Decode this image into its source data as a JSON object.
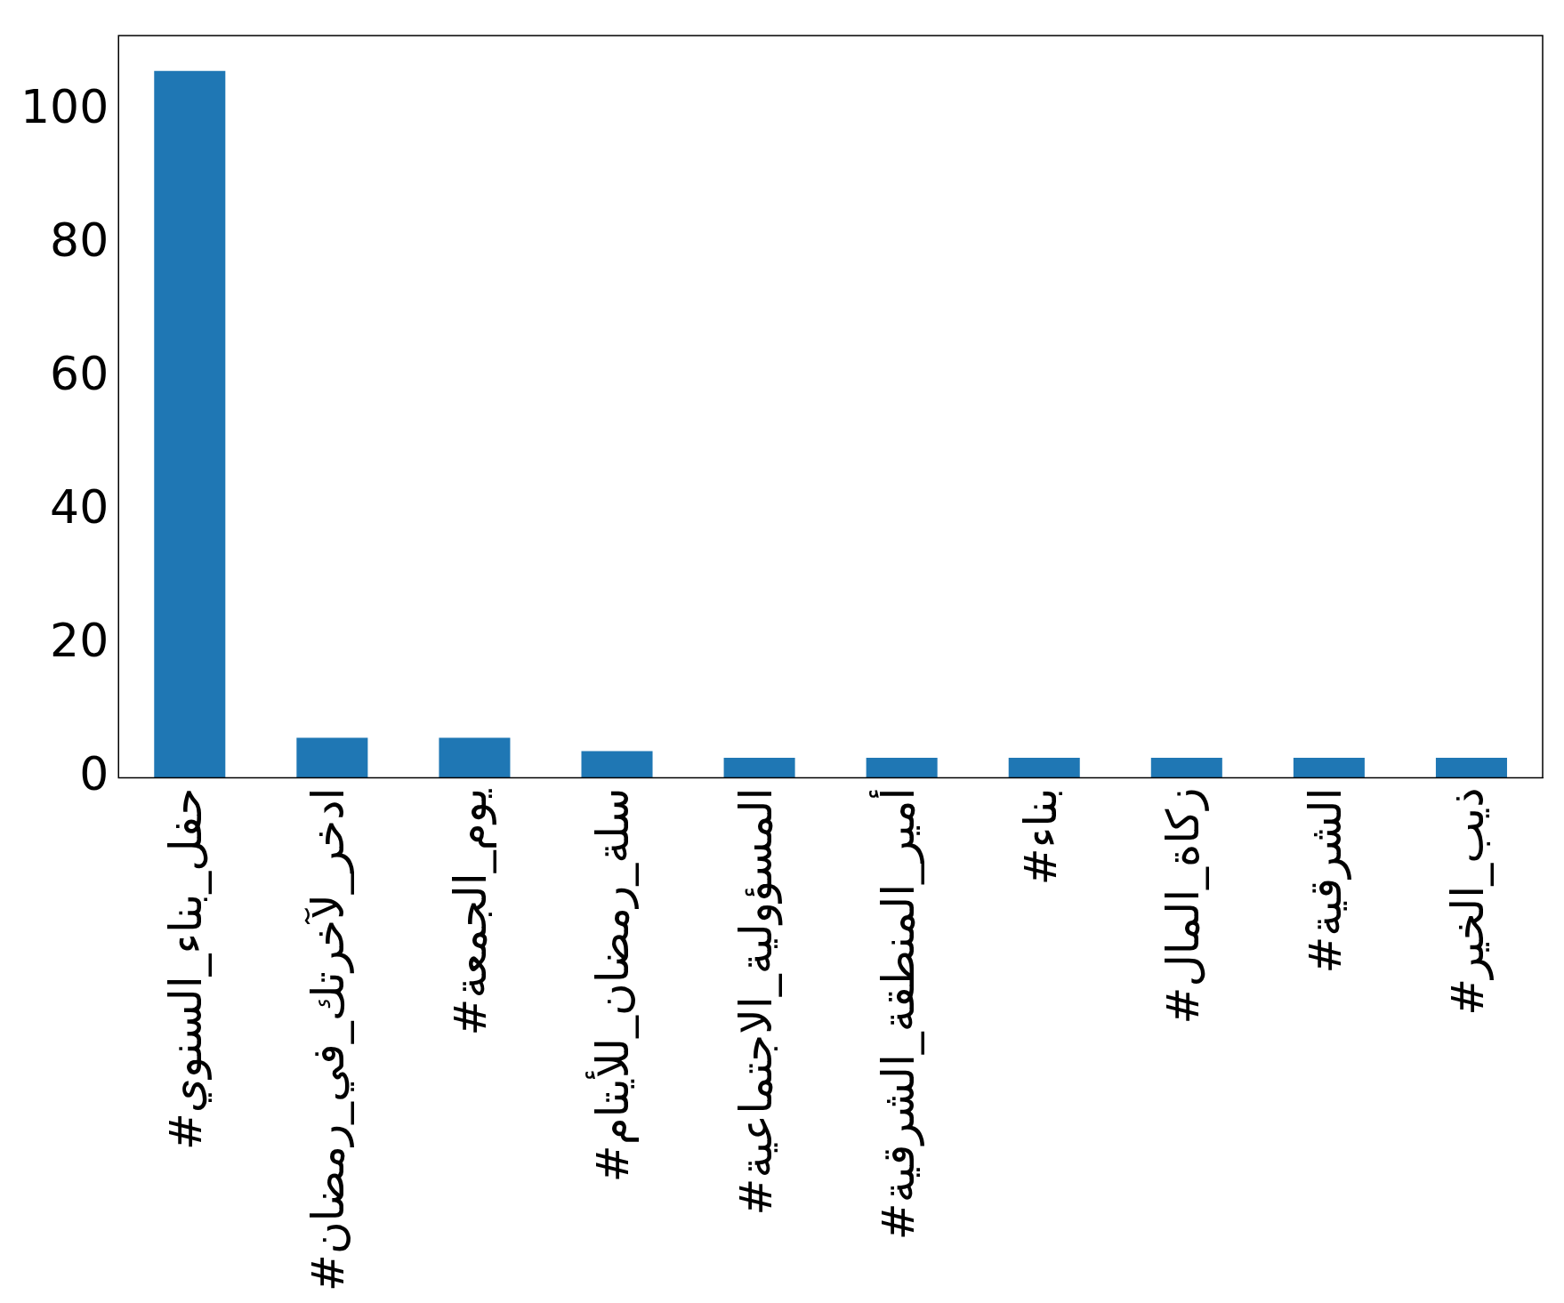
{
  "chart_data": {
    "type": "bar",
    "categories": [
      "#حفل_بناء_السنوي",
      "#ادخر_لآخرتك_في_رمضان",
      "#يوم_الجمعة",
      "#سلة_رمضان_للأيتام",
      "#المسؤولية_الاجتماعية",
      "#أمير_المنطقة_الشرقية",
      "#بناء",
      "#زكاة_المال",
      "#الشرقية",
      "#ذيب_الخير"
    ],
    "values": [
      106,
      6,
      6,
      4,
      3,
      3,
      3,
      3,
      3,
      3
    ],
    "color": "#1f77b4",
    "ylim": [
      0,
      111.3
    ],
    "yticks": [
      0,
      20,
      40,
      60,
      80,
      100
    ],
    "grid": false,
    "legend": false
  }
}
